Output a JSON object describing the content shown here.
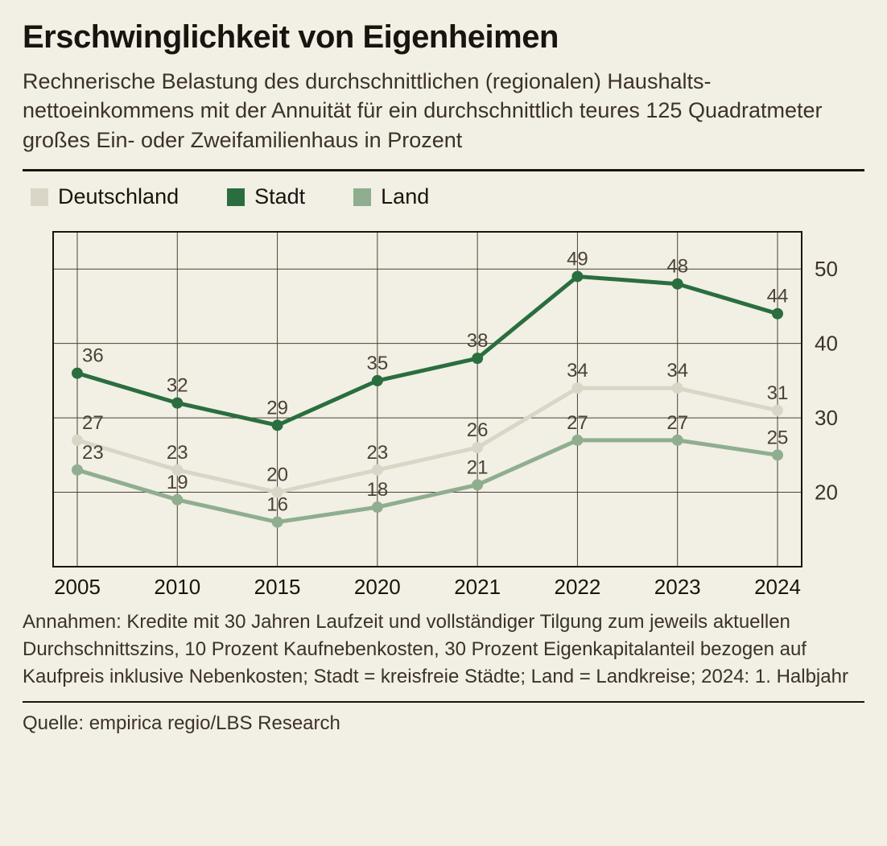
{
  "title": "Erschwinglichkeit von Eigenheimen",
  "subtitle": "Rechnerische Belastung des durchschnittlichen (regionalen) Haushalts­nettoeinkommens mit der Annuität für ein durchschnittlich teures 125 Quadratmeter großes Ein- oder Zweifamilienhaus in Prozent",
  "legend": {
    "items": [
      {
        "key": "deutschland",
        "label": "Deutschland",
        "color": "#d9d6c8"
      },
      {
        "key": "stadt",
        "label": "Stadt",
        "color": "#2a6e3f"
      },
      {
        "key": "land",
        "label": "Land",
        "color": "#8fae8f"
      }
    ]
  },
  "chart": {
    "type": "line",
    "background_color": "#f2efe4",
    "plot_border_color": "#1a1410",
    "plot_border_width": 2,
    "grid_color": "#4a4237",
    "grid_width": 1,
    "x_categories": [
      "2005",
      "2010",
      "2015",
      "2020",
      "2021",
      "2022",
      "2023",
      "2024"
    ],
    "x_label_fontsize": 26,
    "x_label_color": "#1a1410",
    "y_ticks": [
      10,
      20,
      30,
      40,
      50
    ],
    "y_tick_labels": [
      "",
      "20",
      "30",
      "40",
      "50"
    ],
    "y_label_fontsize": 26,
    "y_label_color": "#3b3228",
    "ylim": [
      10,
      55
    ],
    "line_width": 5,
    "marker_radius": 7,
    "value_label_fontsize": 24,
    "value_label_color": "#4a4237",
    "series": [
      {
        "key": "stadt",
        "color": "#2a6e3f",
        "values": [
          36,
          32,
          29,
          35,
          38,
          49,
          48,
          44
        ],
        "label_dy": [
          -14,
          -14,
          -14,
          -14,
          -14,
          -14,
          -14,
          -14
        ]
      },
      {
        "key": "deutschland",
        "color": "#d9d6c8",
        "values": [
          27,
          23,
          20,
          23,
          26,
          34,
          34,
          31
        ],
        "label_dy": [
          -14,
          -14,
          -14,
          -14,
          -14,
          -14,
          -14,
          -14
        ]
      },
      {
        "key": "land",
        "color": "#8fae8f",
        "values": [
          23,
          19,
          16,
          18,
          21,
          27,
          27,
          25
        ],
        "label_dy": [
          -14,
          -14,
          -14,
          -14,
          -14,
          -14,
          -14,
          -14
        ]
      }
    ]
  },
  "footnote": "Annahmen: Kredite mit 30 Jahren Laufzeit und vollständiger Tilgung zum jeweils aktuellen Durchschnittszins, 10 Prozent Kaufnebenkosten, 30 Prozent Eigenkapitalanteil bezogen auf Kaufpreis inklusive Nebenkosten; Stadt = kreisfreie Städte; Land = Landkreise; 2024: 1. Halbjahr",
  "source": "Quelle: empirica regio/LBS Research"
}
